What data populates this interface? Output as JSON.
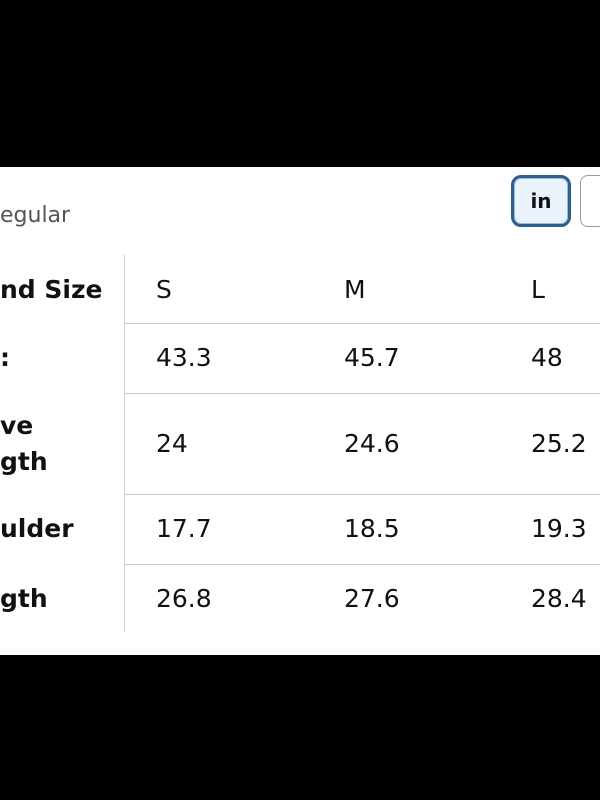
{
  "header": {
    "filter": "egular",
    "unit_toggle": "in"
  },
  "table": {
    "header": [
      "nd Size",
      "S",
      "M",
      "L"
    ],
    "rows": [
      [
        [
          ":"
        ],
        "43.3",
        "45.7",
        "48"
      ],
      [
        [
          "ve",
          "gth"
        ],
        "24",
        "24.6",
        "25.2"
      ],
      [
        [
          "ulder"
        ],
        "17.7",
        "18.5",
        "19.3"
      ],
      [
        [
          "gth"
        ],
        "26.8",
        "27.6",
        "28.4"
      ]
    ]
  }
}
